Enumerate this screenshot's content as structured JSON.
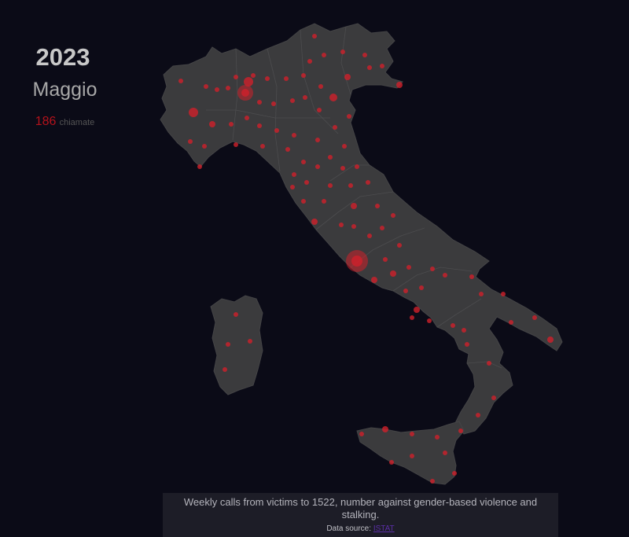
{
  "header": {
    "year": "2023",
    "month": "Maggio",
    "calls_count": "186",
    "calls_unit": "chiamate"
  },
  "footer": {
    "description": "Weekly calls from victims to 1522, number against gender-based violence and stalking.",
    "source_label": "Data source:",
    "source_link": "ISTAT"
  },
  "colors": {
    "background": "#0b0b17",
    "land": "#3b3b3d",
    "border": "#4a4a4c",
    "dot": "#d0202a",
    "count": "#b5121b"
  }
}
